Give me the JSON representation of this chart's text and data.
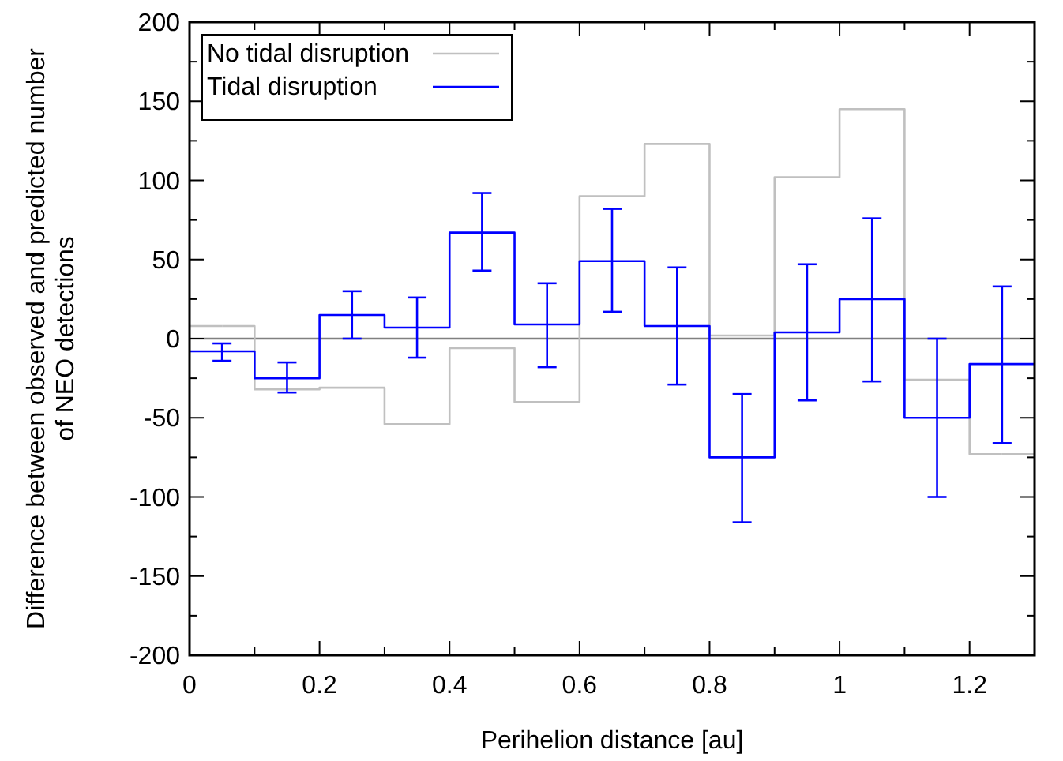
{
  "chart_data": {
    "type": "step",
    "xlabel": "Perihelion distance [au]",
    "ylabel": "Difference between observed and predicted number of NEO detections",
    "x": [
      0.05,
      0.15,
      0.25,
      0.35,
      0.45,
      0.55,
      0.65,
      0.75,
      0.85,
      0.95,
      1.05,
      1.15,
      1.25
    ],
    "series": [
      {
        "name": "No tidal disruption",
        "color": "#c0c0c0",
        "values": [
          8,
          -32,
          -31,
          -54,
          -6,
          -40,
          90,
          123,
          2,
          102,
          145,
          -26,
          -73
        ]
      },
      {
        "name": "Tidal disruption",
        "color": "#0000ff",
        "values": [
          -8,
          -25,
          15,
          7,
          67,
          9,
          49,
          8,
          -75,
          4,
          25,
          -50,
          -16
        ],
        "errors": [
          [
            -14,
            -3
          ],
          [
            -34,
            -15
          ],
          [
            0,
            30
          ],
          [
            -12,
            26
          ],
          [
            43,
            92
          ],
          [
            -18,
            35
          ],
          [
            17,
            82
          ],
          [
            -29,
            45
          ],
          [
            -116,
            -35
          ],
          [
            -39,
            47
          ],
          [
            -27,
            76
          ],
          [
            -100,
            0
          ],
          [
            -66,
            33
          ]
        ]
      }
    ],
    "xlim": [
      0,
      1.3
    ],
    "xticks": [
      0,
      0.2,
      0.4,
      0.6,
      0.8,
      1,
      1.2
    ],
    "ylim": [
      -200,
      200
    ],
    "yticks": [
      -200,
      -150,
      -100,
      -50,
      0,
      50,
      100,
      150,
      200
    ],
    "ref_lines": [
      {
        "axis": "y",
        "value": 0,
        "color": "#808080"
      }
    ],
    "legend": "top left",
    "grid": false
  }
}
